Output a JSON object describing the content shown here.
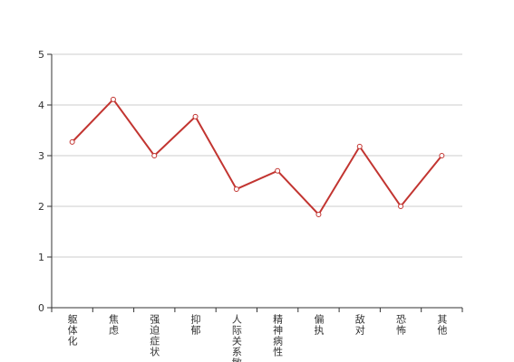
{
  "chart_data": {
    "type": "line",
    "categories": [
      "躯体化",
      "焦虑",
      "强迫症状",
      "抑郁",
      "人际关系敏感",
      "精神病性",
      "偏执",
      "敌对",
      "恐怖",
      "其他"
    ],
    "values": [
      3.27,
      4.11,
      3.0,
      3.77,
      2.34,
      2.7,
      1.84,
      3.18,
      2.0,
      3.0
    ],
    "color": "#c23531",
    "ylim": [
      0,
      5
    ],
    "yticks": [
      0,
      1,
      2,
      3,
      4,
      5
    ],
    "grid": true
  }
}
